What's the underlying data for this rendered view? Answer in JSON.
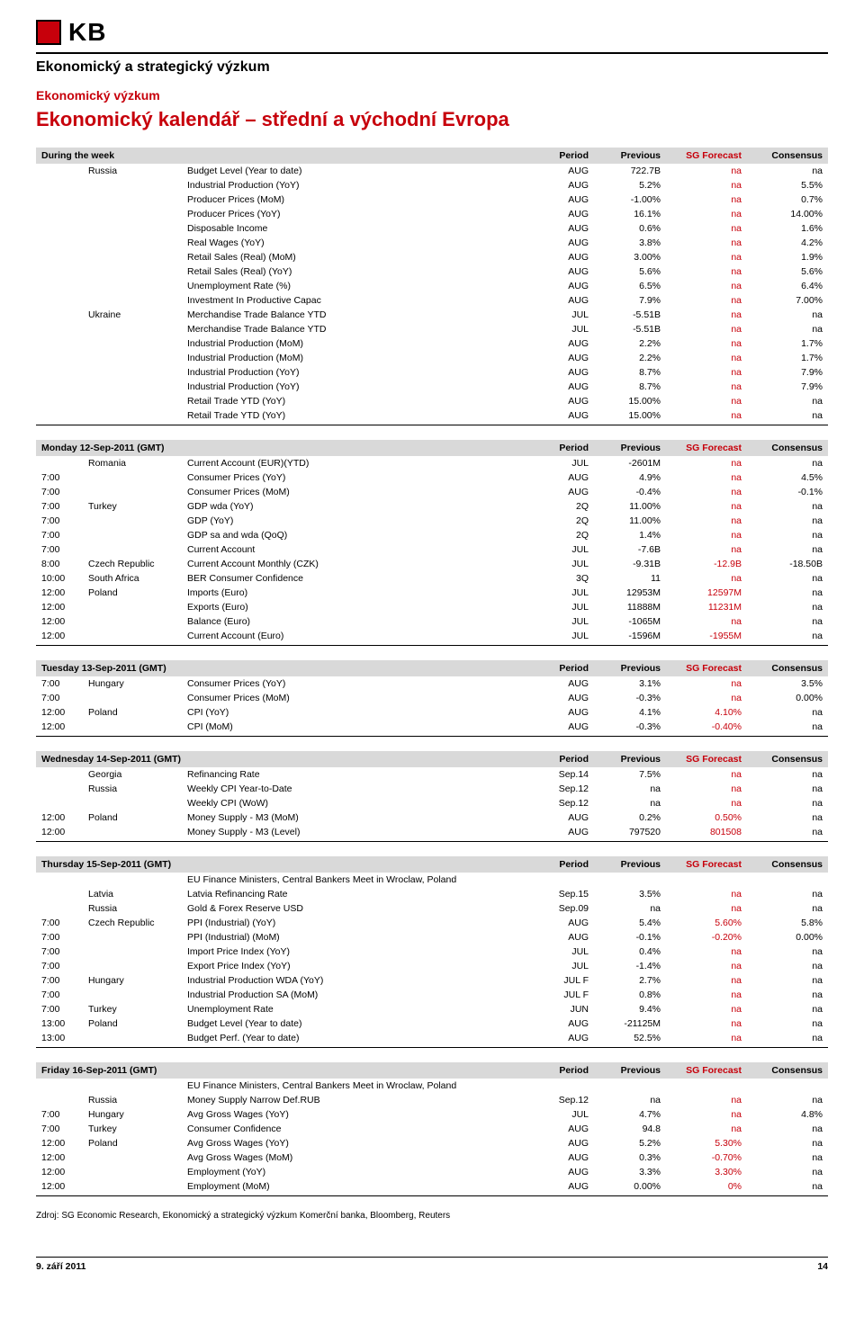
{
  "colors": {
    "brand_red": "#c7000b",
    "header_gray": "#d9d9d9",
    "black": "#000000",
    "white": "#ffffff"
  },
  "logo_text": "KB",
  "heading": "Ekonomický a strategický výzkum",
  "red_heading_small": "Ekonomický výzkum",
  "red_heading_big": "Ekonomický kalendář – střední a východní Evropa",
  "col_headers": {
    "period": "Period",
    "previous": "Previous",
    "sg": "SG Forecast",
    "consensus": "Consensus"
  },
  "source_line": "Zdroj: SG Economic Research, Ekonomický a strategický výzkum Komerční banka, Bloomberg, Reuters",
  "footer_date": "9. září 2011",
  "footer_page": "14",
  "sections": [
    {
      "title": "During the week",
      "rows": [
        {
          "time": "",
          "country": "Russia",
          "event": "Budget Level (Year to date)",
          "period": "AUG",
          "prev": "722.7B",
          "sg": "na",
          "cons": "na"
        },
        {
          "time": "",
          "country": "",
          "event": "Industrial Production (YoY)",
          "period": "AUG",
          "prev": "5.2%",
          "sg": "na",
          "cons": "5.5%"
        },
        {
          "time": "",
          "country": "",
          "event": "Producer Prices (MoM)",
          "period": "AUG",
          "prev": "-1.00%",
          "sg": "na",
          "cons": "0.7%"
        },
        {
          "time": "",
          "country": "",
          "event": "Producer Prices (YoY)",
          "period": "AUG",
          "prev": "16.1%",
          "sg": "na",
          "cons": "14.00%"
        },
        {
          "time": "",
          "country": "",
          "event": "Disposable Income",
          "period": "AUG",
          "prev": "0.6%",
          "sg": "na",
          "cons": "1.6%"
        },
        {
          "time": "",
          "country": "",
          "event": "Real Wages (YoY)",
          "period": "AUG",
          "prev": "3.8%",
          "sg": "na",
          "cons": "4.2%"
        },
        {
          "time": "",
          "country": "",
          "event": "Retail Sales (Real) (MoM)",
          "period": "AUG",
          "prev": "3.00%",
          "sg": "na",
          "cons": "1.9%"
        },
        {
          "time": "",
          "country": "",
          "event": "Retail Sales (Real) (YoY)",
          "period": "AUG",
          "prev": "5.6%",
          "sg": "na",
          "cons": "5.6%"
        },
        {
          "time": "",
          "country": "",
          "event": "Unemployment Rate (%)",
          "period": "AUG",
          "prev": "6.5%",
          "sg": "na",
          "cons": "6.4%"
        },
        {
          "time": "",
          "country": "",
          "event": "Investment In Productive Capac",
          "period": "AUG",
          "prev": "7.9%",
          "sg": "na",
          "cons": "7.00%"
        },
        {
          "time": "",
          "country": "Ukraine",
          "event": "Merchandise Trade Balance YTD",
          "period": "JUL",
          "prev": "-5.51B",
          "sg": "na",
          "cons": "na"
        },
        {
          "time": "",
          "country": "",
          "event": "Merchandise Trade Balance YTD",
          "period": "JUL",
          "prev": "-5.51B",
          "sg": "na",
          "cons": "na"
        },
        {
          "time": "",
          "country": "",
          "event": "Industrial Production (MoM)",
          "period": "AUG",
          "prev": "2.2%",
          "sg": "na",
          "cons": "1.7%"
        },
        {
          "time": "",
          "country": "",
          "event": "Industrial Production (MoM)",
          "period": "AUG",
          "prev": "2.2%",
          "sg": "na",
          "cons": "1.7%"
        },
        {
          "time": "",
          "country": "",
          "event": "Industrial Production (YoY)",
          "period": "AUG",
          "prev": "8.7%",
          "sg": "na",
          "cons": "7.9%"
        },
        {
          "time": "",
          "country": "",
          "event": "Industrial Production (YoY)",
          "period": "AUG",
          "prev": "8.7%",
          "sg": "na",
          "cons": "7.9%"
        },
        {
          "time": "",
          "country": "",
          "event": "Retail Trade YTD (YoY)",
          "period": "AUG",
          "prev": "15.00%",
          "sg": "na",
          "cons": "na"
        },
        {
          "time": "",
          "country": "",
          "event": "Retail Trade YTD (YoY)",
          "period": "AUG",
          "prev": "15.00%",
          "sg": "na",
          "cons": "na"
        }
      ]
    },
    {
      "title": "Monday 12-Sep-2011 (GMT)",
      "rows": [
        {
          "time": "",
          "country": "Romania",
          "event": "Current Account (EUR)(YTD)",
          "period": "JUL",
          "prev": "-2601M",
          "sg": "na",
          "cons": "na"
        },
        {
          "time": "7:00",
          "country": "",
          "event": "Consumer Prices (YoY)",
          "period": "AUG",
          "prev": "4.9%",
          "sg": "na",
          "cons": "4.5%"
        },
        {
          "time": "7:00",
          "country": "",
          "event": "Consumer Prices (MoM)",
          "period": "AUG",
          "prev": "-0.4%",
          "sg": "na",
          "cons": "-0.1%"
        },
        {
          "time": "7:00",
          "country": "Turkey",
          "event": "GDP wda (YoY)",
          "period": "2Q",
          "prev": "11.00%",
          "sg": "na",
          "cons": "na"
        },
        {
          "time": "7:00",
          "country": "",
          "event": "GDP (YoY)",
          "period": "2Q",
          "prev": "11.00%",
          "sg": "na",
          "cons": "na"
        },
        {
          "time": "7:00",
          "country": "",
          "event": "GDP sa and wda (QoQ)",
          "period": "2Q",
          "prev": "1.4%",
          "sg": "na",
          "cons": "na"
        },
        {
          "time": "7:00",
          "country": "",
          "event": "Current Account",
          "period": "JUL",
          "prev": "-7.6B",
          "sg": "na",
          "cons": "na"
        },
        {
          "time": "8:00",
          "country": "Czech Republic",
          "event": "Current Account Monthly (CZK)",
          "period": "JUL",
          "prev": "-9.31B",
          "sg": "-12.9B",
          "cons": "-18.50B"
        },
        {
          "time": "10:00",
          "country": "South Africa",
          "event": "BER Consumer Confidence",
          "period": "3Q",
          "prev": "11",
          "sg": "na",
          "cons": "na"
        },
        {
          "time": "12:00",
          "country": "Poland",
          "event": "Imports (Euro)",
          "period": "JUL",
          "prev": "12953M",
          "sg": "12597M",
          "cons": "na"
        },
        {
          "time": "12:00",
          "country": "",
          "event": "Exports (Euro)",
          "period": "JUL",
          "prev": "11888M",
          "sg": "11231M",
          "cons": "na"
        },
        {
          "time": "12:00",
          "country": "",
          "event": "Balance (Euro)",
          "period": "JUL",
          "prev": "-1065M",
          "sg": "na",
          "cons": "na"
        },
        {
          "time": "12:00",
          "country": "",
          "event": "Current Account (Euro)",
          "period": "JUL",
          "prev": "-1596M",
          "sg": "-1955M",
          "cons": "na"
        }
      ]
    },
    {
      "title": "Tuesday 13-Sep-2011 (GMT)",
      "rows": [
        {
          "time": "7:00",
          "country": "Hungary",
          "event": "Consumer Prices (YoY)",
          "period": "AUG",
          "prev": "3.1%",
          "sg": "na",
          "cons": "3.5%"
        },
        {
          "time": "7:00",
          "country": "",
          "event": "Consumer Prices (MoM)",
          "period": "AUG",
          "prev": "-0.3%",
          "sg": "na",
          "cons": "0.00%"
        },
        {
          "time": "12:00",
          "country": "Poland",
          "event": "CPI (YoY)",
          "period": "AUG",
          "prev": "4.1%",
          "sg": "4.10%",
          "cons": "na"
        },
        {
          "time": "12:00",
          "country": "",
          "event": "CPI (MoM)",
          "period": "AUG",
          "prev": "-0.3%",
          "sg": "-0.40%",
          "cons": "na"
        }
      ]
    },
    {
      "title": "Wednesday 14-Sep-2011 (GMT)",
      "rows": [
        {
          "time": "",
          "country": "Georgia",
          "event": "Refinancing Rate",
          "period": "Sep.14",
          "prev": "7.5%",
          "sg": "na",
          "cons": "na"
        },
        {
          "time": "",
          "country": "Russia",
          "event": "Weekly CPI Year-to-Date",
          "period": "Sep.12",
          "prev": "na",
          "sg": "na",
          "cons": "na"
        },
        {
          "time": "",
          "country": "",
          "event": "Weekly CPI (WoW)",
          "period": "Sep.12",
          "prev": "na",
          "sg": "na",
          "cons": "na"
        },
        {
          "time": "12:00",
          "country": "Poland",
          "event": "Money Supply - M3 (MoM)",
          "period": "AUG",
          "prev": "0.2%",
          "sg": "0.50%",
          "cons": "na"
        },
        {
          "time": "12:00",
          "country": "",
          "event": "Money Supply - M3 (Level)",
          "period": "AUG",
          "prev": "797520",
          "sg": "801508",
          "cons": "na"
        }
      ]
    },
    {
      "title": "Thursday 15-Sep-2011 (GMT)",
      "rows": [
        {
          "time": "",
          "country": "",
          "event": "EU Finance Ministers, Central Bankers Meet in Wroclaw, Poland",
          "period": "",
          "prev": "",
          "sg": "",
          "cons": ""
        },
        {
          "time": "",
          "country": "Latvia",
          "event": "Latvia Refinancing Rate",
          "period": "Sep.15",
          "prev": "3.5%",
          "sg": "na",
          "cons": "na"
        },
        {
          "time": "",
          "country": "Russia",
          "event": "Gold & Forex Reserve USD",
          "period": "Sep.09",
          "prev": "na",
          "sg": "na",
          "cons": "na"
        },
        {
          "time": "7:00",
          "country": "Czech Republic",
          "event": "PPI (Industrial) (YoY)",
          "period": "AUG",
          "prev": "5.4%",
          "sg": "5.60%",
          "cons": "5.8%"
        },
        {
          "time": "7:00",
          "country": "",
          "event": "PPI (Industrial) (MoM)",
          "period": "AUG",
          "prev": "-0.1%",
          "sg": "-0.20%",
          "cons": "0.00%"
        },
        {
          "time": "7:00",
          "country": "",
          "event": "Import Price Index (YoY)",
          "period": "JUL",
          "prev": "0.4%",
          "sg": "na",
          "cons": "na"
        },
        {
          "time": "7:00",
          "country": "",
          "event": "Export Price Index (YoY)",
          "period": "JUL",
          "prev": "-1.4%",
          "sg": "na",
          "cons": "na"
        },
        {
          "time": "7:00",
          "country": "Hungary",
          "event": "Industrial Production WDA (YoY)",
          "period": "JUL F",
          "prev": "2.7%",
          "sg": "na",
          "cons": "na"
        },
        {
          "time": "7:00",
          "country": "",
          "event": "Industrial Production SA (MoM)",
          "period": "JUL F",
          "prev": "0.8%",
          "sg": "na",
          "cons": "na"
        },
        {
          "time": "7:00",
          "country": "Turkey",
          "event": "Unemployment Rate",
          "period": "JUN",
          "prev": "9.4%",
          "sg": "na",
          "cons": "na"
        },
        {
          "time": "13:00",
          "country": "Poland",
          "event": "Budget Level (Year to date)",
          "period": "AUG",
          "prev": "-21125M",
          "sg": "na",
          "cons": "na"
        },
        {
          "time": "13:00",
          "country": "",
          "event": "Budget Perf. (Year to date)",
          "period": "AUG",
          "prev": "52.5%",
          "sg": "na",
          "cons": "na"
        }
      ]
    },
    {
      "title": "Friday 16-Sep-2011 (GMT)",
      "rows": [
        {
          "time": "",
          "country": "",
          "event": "EU Finance Ministers, Central Bankers Meet in Wroclaw, Poland",
          "period": "",
          "prev": "",
          "sg": "",
          "cons": ""
        },
        {
          "time": "",
          "country": "Russia",
          "event": "Money Supply Narrow Def.RUB",
          "period": "Sep.12",
          "prev": "na",
          "sg": "na",
          "cons": "na"
        },
        {
          "time": "7:00",
          "country": "Hungary",
          "event": "Avg Gross Wages (YoY)",
          "period": "JUL",
          "prev": "4.7%",
          "sg": "na",
          "cons": "4.8%"
        },
        {
          "time": "7:00",
          "country": "Turkey",
          "event": "Consumer Confidence",
          "period": "AUG",
          "prev": "94.8",
          "sg": "na",
          "cons": "na"
        },
        {
          "time": "12:00",
          "country": "Poland",
          "event": "Avg Gross Wages (YoY)",
          "period": "AUG",
          "prev": "5.2%",
          "sg": "5.30%",
          "cons": "na"
        },
        {
          "time": "12:00",
          "country": "",
          "event": "Avg Gross Wages (MoM)",
          "period": "AUG",
          "prev": "0.3%",
          "sg": "-0.70%",
          "cons": "na"
        },
        {
          "time": "12:00",
          "country": "",
          "event": "Employment (YoY)",
          "period": "AUG",
          "prev": "3.3%",
          "sg": "3.30%",
          "cons": "na"
        },
        {
          "time": "12:00",
          "country": "",
          "event": "Employment (MoM)",
          "period": "AUG",
          "prev": "0.00%",
          "sg": "0%",
          "cons": "na"
        }
      ]
    }
  ]
}
